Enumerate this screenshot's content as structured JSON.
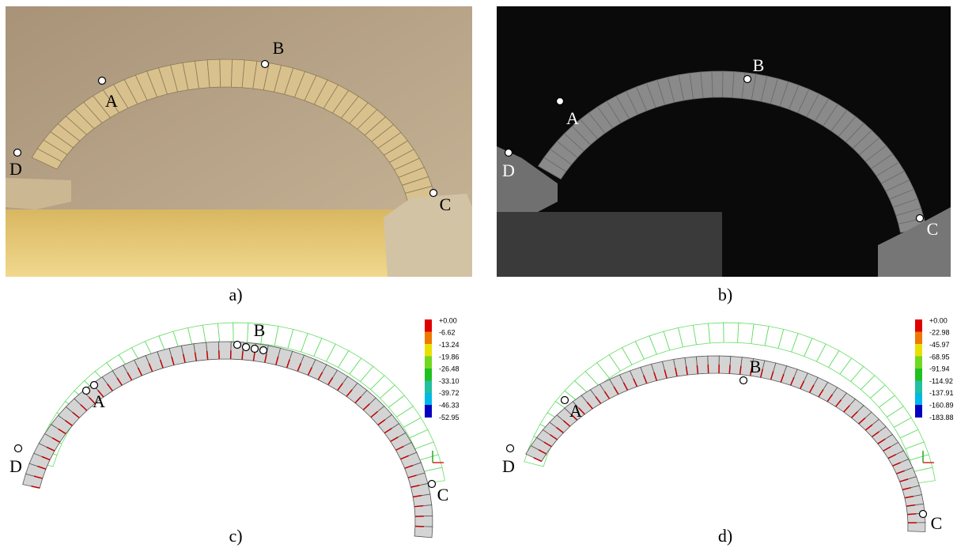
{
  "panels": [
    {
      "caption": "a)",
      "points": {
        "A": "A",
        "B": "B",
        "C": "C",
        "D": "D"
      }
    },
    {
      "caption": "b)",
      "points": {
        "A": "A",
        "B": "B",
        "C": "C",
        "D": "D"
      }
    },
    {
      "caption": "c)",
      "points": {
        "A": "A",
        "B": "B",
        "C": "C",
        "D": "D"
      },
      "legend": [
        "+0.00",
        "-6.62",
        "-13.24",
        "-19.86",
        "-26.48",
        "-33.10",
        "-39.72",
        "-46.33",
        "-52.95"
      ]
    },
    {
      "caption": "d)",
      "points": {
        "A": "A",
        "B": "B",
        "C": "C",
        "D": "D"
      },
      "legend": [
        "+0.00",
        "-22.98",
        "-45.97",
        "-68.95",
        "-91.94",
        "-114.92",
        "-137.91",
        "-160.89",
        "-183.88"
      ]
    }
  ]
}
